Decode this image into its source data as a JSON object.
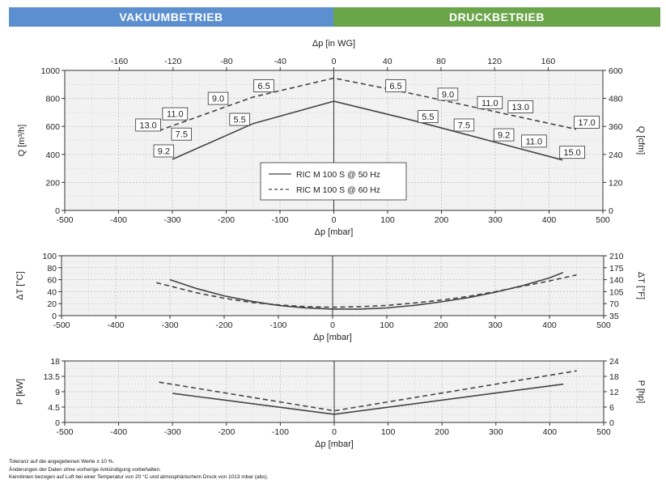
{
  "header": {
    "left": "VAKUUMBETRIEB",
    "right": "DRUCKBETRIEB"
  },
  "notes": [
    "Toleranz auf die angegebenen Werte ± 10 %.",
    "Änderungen der Daten ohne vorherige Ankündigung vorbehalten.",
    "Kennlinien bezogen auf Luft bei einer Temperatur von 20 °C und atmosphärischem Druck von 1013 mbar (abs)."
  ],
  "chart_data": [
    {
      "type": "line",
      "xlabel": "Δp [mbar]",
      "ylabel": "Q [m³/h]",
      "xlim": [
        -500,
        500
      ],
      "ylim": [
        0,
        1000
      ],
      "xticks": [
        -500,
        -400,
        -300,
        -200,
        -100,
        0,
        100,
        200,
        300,
        400,
        500
      ],
      "yticks": [
        0,
        200,
        400,
        600,
        800,
        1000
      ],
      "top_axis": {
        "label": "Δp [in WG]",
        "ticks": [
          -160,
          -120,
          -80,
          -40,
          0,
          40,
          80,
          120,
          160
        ],
        "factor": 2.49
      },
      "right_axis": {
        "label": "Q [cfm]",
        "ticks": [
          0,
          120,
          240,
          360,
          480,
          600
        ],
        "factor": 0.588
      },
      "legend_position": "center",
      "series": [
        {
          "name": "RIC M 100 S @ 50 Hz",
          "style": "solid",
          "x": [
            -300,
            -150,
            0,
            150,
            425
          ],
          "y": [
            365,
            620,
            780,
            640,
            360
          ]
        },
        {
          "name": "RIC M 100 S @ 60 Hz",
          "style": "dashed",
          "x": [
            -325,
            -150,
            0,
            150,
            450
          ],
          "y": [
            570,
            810,
            945,
            830,
            580
          ]
        }
      ],
      "annotations": [
        {
          "text": "13.0",
          "x": -345,
          "y": 610
        },
        {
          "text": "11.0",
          "x": -295,
          "y": 690
        },
        {
          "text": "9.0",
          "x": -215,
          "y": 800
        },
        {
          "text": "6.5",
          "x": -130,
          "y": 890
        },
        {
          "text": "9.2",
          "x": -316,
          "y": 425
        },
        {
          "text": "7.5",
          "x": -283,
          "y": 545
        },
        {
          "text": "5.5",
          "x": -175,
          "y": 650
        },
        {
          "text": "6.5",
          "x": 115,
          "y": 890
        },
        {
          "text": "9.0",
          "x": 212,
          "y": 830
        },
        {
          "text": "11.0",
          "x": 290,
          "y": 770
        },
        {
          "text": "13.0",
          "x": 347,
          "y": 740
        },
        {
          "text": "17.0",
          "x": 470,
          "y": 630
        },
        {
          "text": "5.5",
          "x": 175,
          "y": 670
        },
        {
          "text": "7.5",
          "x": 242,
          "y": 610
        },
        {
          "text": "9.2",
          "x": 316,
          "y": 540
        },
        {
          "text": "11.0",
          "x": 372,
          "y": 495
        },
        {
          "text": "15.0",
          "x": 443,
          "y": 415
        }
      ]
    },
    {
      "type": "line",
      "xlabel": "Δp [mbar]",
      "ylabel": "ΔT [°C]",
      "xlim": [
        -500,
        500
      ],
      "ylim": [
        0,
        100
      ],
      "xticks": [
        -500,
        -400,
        -300,
        -200,
        -100,
        0,
        100,
        200,
        300,
        400,
        500
      ],
      "yticks": [
        0,
        20,
        40,
        60,
        80,
        100
      ],
      "right_axis": {
        "label": "ΔT [°F]",
        "ticks": [
          35,
          70,
          105,
          140,
          175,
          210
        ]
      },
      "series": [
        {
          "name": "RIC M 100 S @ 50 Hz",
          "style": "solid",
          "x": [
            -300,
            -250,
            -200,
            -150,
            -100,
            -50,
            0,
            50,
            100,
            150,
            200,
            250,
            300,
            350,
            400,
            425
          ],
          "y": [
            60,
            45,
            33,
            24,
            17,
            13,
            11,
            11,
            13,
            17,
            23,
            30,
            39,
            50,
            63,
            72
          ]
        },
        {
          "name": "RIC M 100 S @ 60 Hz",
          "style": "dashed",
          "x": [
            -325,
            -250,
            -200,
            -150,
            -100,
            -50,
            0,
            50,
            100,
            150,
            200,
            250,
            300,
            350,
            400,
            450
          ],
          "y": [
            55,
            38,
            29,
            22,
            18,
            15,
            14,
            15,
            17,
            21,
            26,
            32,
            40,
            49,
            58,
            68
          ]
        }
      ]
    },
    {
      "type": "line",
      "xlabel": "Δp [mbar]",
      "ylabel": "P [kW]",
      "xlim": [
        -500,
        500
      ],
      "ylim": [
        0,
        18
      ],
      "xticks": [
        -500,
        -400,
        -300,
        -200,
        -100,
        0,
        100,
        200,
        300,
        400,
        500
      ],
      "yticks": [
        0,
        4.5,
        9,
        13.5,
        18
      ],
      "right_axis": {
        "label": "P [hp]",
        "ticks": [
          0,
          6,
          12,
          18,
          24
        ]
      },
      "series": [
        {
          "name": "RIC M 100 S @ 50 Hz",
          "style": "solid",
          "x": [
            -300,
            0,
            425
          ],
          "y": [
            8.5,
            2.4,
            11.2
          ]
        },
        {
          "name": "RIC M 100 S @ 60 Hz",
          "style": "dashed",
          "x": [
            -325,
            0,
            450
          ],
          "y": [
            11.8,
            3.4,
            15.1
          ]
        }
      ]
    }
  ]
}
